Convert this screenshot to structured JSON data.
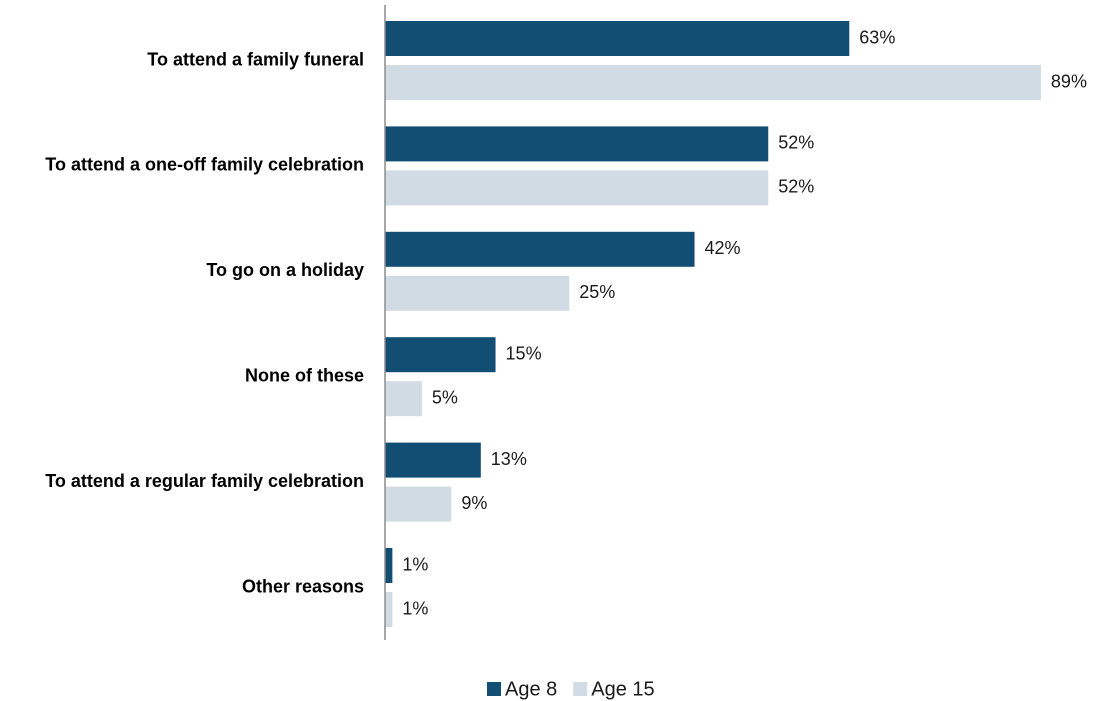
{
  "chart_data": {
    "type": "bar",
    "orientation": "horizontal",
    "categories": [
      "To attend a family funeral",
      "To attend a one-off family celebration",
      "To go on a holiday",
      "None of these",
      "To attend a regular family celebration",
      "Other reasons"
    ],
    "series": [
      {
        "name": "Age 8",
        "values": [
          63,
          52,
          42,
          15,
          13,
          1
        ],
        "labels": [
          "63%",
          "52%",
          "42%",
          "15%",
          "13%",
          "1%"
        ],
        "color": "#124e73"
      },
      {
        "name": "Age 15",
        "values": [
          89,
          52,
          25,
          5,
          9,
          1
        ],
        "labels": [
          "89%",
          "52%",
          "25%",
          "5%",
          "9%",
          "1%"
        ],
        "color": "#d0dbe3"
      }
    ],
    "xlim": [
      0,
      100
    ],
    "grid": false,
    "legend_position": "bottom"
  }
}
